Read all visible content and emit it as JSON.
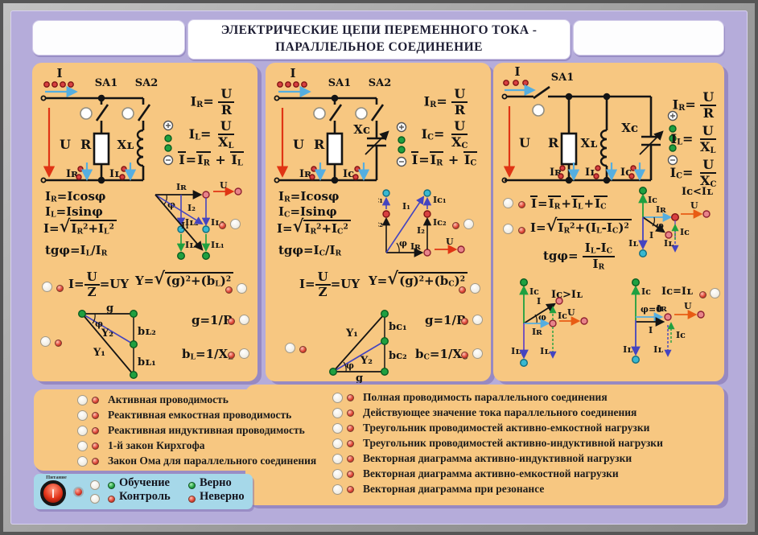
{
  "header": {
    "title_line1": "ЭЛЕКТРИЧЕСКИЕ ЦЕПИ ПЕРЕМЕННОГО ТОКА -",
    "title_line2": "ПАРАЛЛЕЛЬНОЕ СОЕДИНЕНИЕ"
  },
  "labels": {
    "i": "I",
    "u": "U",
    "r": "R",
    "g": "g",
    "phi": "φ",
    "phi0": "φ=0",
    "ir": "Iʀ",
    "il": "Iʟ",
    "ic": "Iᴄ",
    "i1": "I₁",
    "i2": "I₂",
    "il1": "Iʟ₁",
    "il2": "Iʟ₂",
    "ic1": "Iᴄ₁",
    "ic2": "Iᴄ₂",
    "xl": "Xʟ",
    "xc": "Xᴄ",
    "sa1": "SA1",
    "sa2": "SA2",
    "y1": "Y₁",
    "y2": "Y₂",
    "bl1": "bʟ₁",
    "bl2": "bʟ₂",
    "bc1": "bᴄ₁",
    "bc2": "bᴄ₂",
    "iclt": "Iᴄ<Iʟ",
    "icgt": "Iᴄ>Iʟ",
    "iceq": "Iᴄ=Iʟ"
  },
  "panels": {
    "p1": {
      "formulas": {
        "ir": [
          {
            "t": "I"
          },
          {
            "b": "R"
          },
          {
            "t": "= "
          },
          {
            "f": {
              "n": [
                {
                  "t": "U"
                }
              ],
              "d": [
                {
                  "t": "R"
                }
              ]
            }
          }
        ],
        "il": [
          {
            "t": "I"
          },
          {
            "b": "L"
          },
          {
            "t": "= "
          },
          {
            "f": {
              "n": [
                {
                  "t": "U"
                }
              ],
              "d": [
                {
                  "t": "X"
                },
                {
                  "b": "L"
                }
              ]
            }
          }
        ],
        "sum": [
          {
            "o": [
              {
                "t": "I"
              }
            ]
          },
          {
            "t": "="
          },
          {
            "o": [
              {
                "t": "I"
              },
              {
                "b": "R"
              }
            ]
          },
          {
            "t": " + "
          },
          {
            "o": [
              {
                "t": "I"
              },
              {
                "b": "L"
              }
            ]
          }
        ],
        "cos": [
          {
            "t": "I"
          },
          {
            "b": "R"
          },
          {
            "t": "=Icosφ"
          }
        ],
        "sin": [
          {
            "t": "I"
          },
          {
            "b": "L"
          },
          {
            "t": "=Isinφ"
          }
        ],
        "mag": [
          {
            "t": "I="
          },
          {
            "r": [
              {
                "t": "I"
              },
              {
                "b": "R"
              },
              {
                "p": "2"
              },
              {
                "t": "+I"
              },
              {
                "b": "L"
              },
              {
                "p": "2"
              }
            ]
          }
        ],
        "tg": [
          {
            "t": "tgφ=I"
          },
          {
            "b": "L"
          },
          {
            "t": "/I"
          },
          {
            "b": "R"
          }
        ],
        "ohm": [
          {
            "t": "I="
          },
          {
            "f": {
              "n": [
                {
                  "t": "U"
                }
              ],
              "d": [
                {
                  "t": "Z"
                }
              ]
            }
          },
          {
            "t": "=UY"
          }
        ],
        "y": [
          {
            "t": "Y="
          },
          {
            "r": [
              {
                "t": "(g)"
              },
              {
                "p": "2"
              },
              {
                "t": "+(b"
              },
              {
                "b": "L"
              },
              {
                "t": ")"
              },
              {
                "p": "2"
              }
            ]
          }
        ],
        "g": [
          {
            "t": "g=1/R"
          }
        ],
        "b": [
          {
            "t": "b"
          },
          {
            "b": "L"
          },
          {
            "t": "=1/X"
          },
          {
            "b": "L"
          }
        ]
      }
    },
    "p2": {
      "formulas": {
        "ir": [
          {
            "t": "I"
          },
          {
            "b": "R"
          },
          {
            "t": "= "
          },
          {
            "f": {
              "n": [
                {
                  "t": "U"
                }
              ],
              "d": [
                {
                  "t": "R"
                }
              ]
            }
          }
        ],
        "ic": [
          {
            "t": "I"
          },
          {
            "b": "C"
          },
          {
            "t": "= "
          },
          {
            "f": {
              "n": [
                {
                  "t": "U"
                }
              ],
              "d": [
                {
                  "t": "X"
                },
                {
                  "b": "C"
                }
              ]
            }
          }
        ],
        "sum": [
          {
            "o": [
              {
                "t": "I"
              }
            ]
          },
          {
            "t": "="
          },
          {
            "o": [
              {
                "t": "I"
              },
              {
                "b": "R"
              }
            ]
          },
          {
            "t": " + "
          },
          {
            "o": [
              {
                "t": "I"
              },
              {
                "b": "C"
              }
            ]
          }
        ],
        "cos": [
          {
            "t": "I"
          },
          {
            "b": "R"
          },
          {
            "t": "=Icosφ"
          }
        ],
        "sin": [
          {
            "t": "I"
          },
          {
            "b": "C"
          },
          {
            "t": "=Isinφ"
          }
        ],
        "mag": [
          {
            "t": "I="
          },
          {
            "r": [
              {
                "t": "I"
              },
              {
                "b": "R"
              },
              {
                "p": "2"
              },
              {
                "t": "+I"
              },
              {
                "b": "C"
              },
              {
                "p": "2"
              }
            ]
          }
        ],
        "tg": [
          {
            "t": "tgφ=I"
          },
          {
            "b": "C"
          },
          {
            "t": "/I"
          },
          {
            "b": "R"
          }
        ],
        "ohm": [
          {
            "t": "I="
          },
          {
            "f": {
              "n": [
                {
                  "t": "U"
                }
              ],
              "d": [
                {
                  "t": "Z"
                }
              ]
            }
          },
          {
            "t": "=UY"
          }
        ],
        "y": [
          {
            "t": "Y="
          },
          {
            "r": [
              {
                "t": "(g)"
              },
              {
                "p": "2"
              },
              {
                "t": "+(b"
              },
              {
                "b": "C"
              },
              {
                "t": ")"
              },
              {
                "p": "2"
              }
            ]
          }
        ],
        "g": [
          {
            "t": "g=1/R"
          }
        ],
        "b": [
          {
            "t": "b"
          },
          {
            "b": "C"
          },
          {
            "t": "=1/X"
          },
          {
            "b": "C"
          }
        ]
      }
    },
    "p3": {
      "formulas": {
        "ir": [
          {
            "t": "I"
          },
          {
            "b": "R"
          },
          {
            "t": "= "
          },
          {
            "f": {
              "n": [
                {
                  "t": "U"
                }
              ],
              "d": [
                {
                  "t": "R"
                }
              ]
            }
          }
        ],
        "il": [
          {
            "t": "I"
          },
          {
            "b": "L"
          },
          {
            "t": "= "
          },
          {
            "f": {
              "n": [
                {
                  "t": "U"
                }
              ],
              "d": [
                {
                  "t": "X"
                },
                {
                  "b": "L"
                }
              ]
            }
          }
        ],
        "ic": [
          {
            "t": "I"
          },
          {
            "b": "C"
          },
          {
            "t": "= "
          },
          {
            "f": {
              "n": [
                {
                  "t": "U"
                }
              ],
              "d": [
                {
                  "t": "X"
                },
                {
                  "b": "C"
                }
              ]
            }
          }
        ],
        "sum3": [
          {
            "o": [
              {
                "t": "I"
              }
            ]
          },
          {
            "t": "="
          },
          {
            "o": [
              {
                "t": "I"
              },
              {
                "b": "R"
              }
            ]
          },
          {
            "t": "+"
          },
          {
            "o": [
              {
                "t": "I"
              },
              {
                "b": "L"
              }
            ]
          },
          {
            "t": "+"
          },
          {
            "o": [
              {
                "t": "I"
              },
              {
                "b": "C"
              }
            ]
          }
        ],
        "mag3": [
          {
            "t": "I="
          },
          {
            "r": [
              {
                "t": "I"
              },
              {
                "b": "R"
              },
              {
                "p": "2"
              },
              {
                "t": "+(I"
              },
              {
                "b": "L"
              },
              {
                "t": "-I"
              },
              {
                "b": "C"
              },
              {
                "t": ")"
              },
              {
                "p": "2"
              }
            ]
          }
        ],
        "tg3": [
          {
            "t": "tgφ= "
          },
          {
            "f": {
              "n": [
                {
                  "t": "I"
                },
                {
                  "b": "L"
                },
                {
                  "t": "-I"
                },
                {
                  "b": "C"
                }
              ],
              "d": [
                {
                  "t": "I"
                },
                {
                  "b": "R"
                }
              ]
            }
          }
        ]
      }
    }
  },
  "legend": {
    "left": [
      "Активная проводимость",
      "Реактивная емкостная проводимость",
      "Реактивная индуктивная проводимость",
      "1-й закон Кирхгофа",
      "Закон Ома для параллельного соединения"
    ],
    "right": [
      "Полная проводимость параллельного соединения",
      "Действующее значение тока параллельного соединения",
      "Треугольник проводимостей активно-емкостной нагрузки",
      "Треугольник проводимостей активно-индуктивной нагрузки",
      "Векторная диаграмма активно-индуктивной нагрузки",
      "Векторная диаграмма активно-емкостной нагрузки",
      "Векторная диаграмма при резонансе"
    ]
  },
  "controls": {
    "power": "Питание",
    "mode_training": "Обучение",
    "mode_control": "Контроль",
    "status_correct": "Верно",
    "status_incorrect": "Неверно"
  },
  "colors": {
    "board": "#b5acda",
    "panel": "#f7c781",
    "control": "#a6d8e9",
    "arrow_red": "#e03414",
    "arrow_blue": "#55aee0",
    "arrow_violet": "#4444c0",
    "arrow_green": "#1fa040",
    "arrow_orange": "#e85c14",
    "dot_green": "#1fa040",
    "dot_cyan": "#38b8d0",
    "dot_red": "#d84040",
    "dot_pink": "#e8848a"
  }
}
